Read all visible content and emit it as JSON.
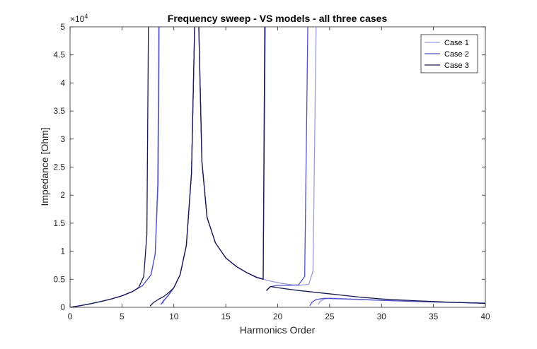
{
  "chart_data": {
    "type": "line",
    "title": "Frequency sweep - VS models - all three cases",
    "xlabel": "Harmonics Order",
    "ylabel": "Impedance [Ohm]",
    "xlim": [
      0,
      40
    ],
    "ylim": [
      0,
      50000
    ],
    "y_exponent_label": "×10",
    "y_exponent_power": "4",
    "xticks": [
      0,
      5,
      10,
      15,
      20,
      25,
      30,
      35,
      40
    ],
    "xtick_labels": [
      "0",
      "5",
      "10",
      "15",
      "20",
      "25",
      "30",
      "35",
      "40"
    ],
    "yticks": [
      0,
      5000,
      10000,
      15000,
      20000,
      25000,
      30000,
      35000,
      40000,
      45000,
      50000
    ],
    "ytick_labels": [
      "0",
      "0.5",
      "1",
      "1.5",
      "2",
      "2.5",
      "3",
      "3.5",
      "4",
      "4.5",
      "5"
    ],
    "grid": false,
    "legend_position": "top-right",
    "series": [
      {
        "name": "Case 1",
        "color": "#9b9be0",
        "curves": [
          {
            "x": [
              0,
              1,
              2,
              3,
              4,
              5,
              6,
              7,
              7.8,
              8.2,
              8.5,
              8.6
            ],
            "y": [
              0,
              300,
              650,
              1050,
              1500,
              2050,
              2800,
              3900,
              5800,
              9500,
              22000,
              50000
            ]
          },
          {
            "x": [
              8.9,
              9.1,
              9.5,
              10,
              10.6,
              11.2,
              11.7,
              12.0
            ],
            "y": [
              600,
              1300,
              2200,
              3500,
              5800,
              11000,
              24000,
              50000
            ]
          },
          {
            "x": [
              12.4,
              12.7,
              13.2,
              14,
              15,
              16,
              17,
              18,
              19,
              20,
              21,
              22,
              23.0,
              23.4,
              23.7
            ],
            "y": [
              50000,
              26000,
              16000,
              11500,
              8800,
              7300,
              6200,
              5400,
              4800,
              4400,
              4100,
              3900,
              4100,
              6500,
              50000
            ]
          },
          {
            "x": [
              23.9,
              24.1,
              24.5,
              25,
              27,
              30,
              33,
              36,
              40
            ],
            "y": [
              500,
              1100,
              1500,
              1650,
              1500,
              1250,
              1050,
              900,
              750
            ]
          }
        ]
      },
      {
        "name": "Case 2",
        "color": "#5050c8",
        "curves": [
          {
            "x": [
              0,
              1,
              2,
              3,
              4,
              5,
              6,
              7,
              7.8,
              8.2,
              8.45,
              8.55
            ],
            "y": [
              0,
              300,
              650,
              1050,
              1500,
              2050,
              2800,
              3900,
              5800,
              9500,
              22000,
              50000
            ]
          },
          {
            "x": [
              8.75,
              9.0,
              9.5,
              10,
              10.6,
              11.2,
              11.7,
              12.0
            ],
            "y": [
              500,
              1200,
              2200,
              3500,
              5800,
              11000,
              24000,
              50000
            ]
          },
          {
            "x": [
              12.4,
              12.7,
              13.2,
              14,
              15,
              16,
              17,
              18,
              18.6,
              18.8
            ],
            "y": [
              50000,
              26000,
              16000,
              11500,
              8800,
              7300,
              6200,
              5300,
              5000,
              50000
            ]
          },
          {
            "x": [
              18.95,
              19.3,
              20,
              21,
              22,
              22.6,
              22.9
            ],
            "y": [
              3000,
              3700,
              3900,
              3900,
              4000,
              5500,
              50000
            ]
          },
          {
            "x": [
              23.1,
              23.3,
              23.7,
              24.5,
              27,
              30,
              33,
              36,
              40
            ],
            "y": [
              300,
              900,
              1400,
              1600,
              1450,
              1250,
              1050,
              900,
              750
            ]
          }
        ]
      },
      {
        "name": "Case 3",
        "color": "#1a1a52",
        "curves": [
          {
            "x": [
              0,
              1,
              2,
              3,
              4,
              5,
              6,
              6.6,
              7.1,
              7.4,
              7.55
            ],
            "y": [
              0,
              300,
              650,
              1050,
              1500,
              2050,
              2800,
              3500,
              5500,
              13000,
              50000
            ]
          },
          {
            "x": [
              7.7,
              8.0,
              8.5,
              9.0,
              9.5,
              10,
              10.6,
              11.2,
              11.7,
              12.0
            ],
            "y": [
              200,
              800,
              1400,
              1900,
              2600,
              3500,
              5800,
              11000,
              24000,
              50000
            ]
          },
          {
            "x": [
              12.4,
              12.7,
              13.2,
              14,
              15,
              16,
              17,
              18,
              18.6,
              18.75
            ],
            "y": [
              50000,
              26000,
              16000,
              11500,
              8800,
              7300,
              6200,
              5300,
              5000,
              50000
            ]
          },
          {
            "x": [
              18.9,
              19.3,
              20,
              22,
              25,
              28,
              30,
              33,
              36,
              40
            ],
            "y": [
              3000,
              3700,
              3500,
              3000,
              2400,
              1800,
              1500,
              1200,
              950,
              700
            ]
          }
        ]
      }
    ]
  }
}
